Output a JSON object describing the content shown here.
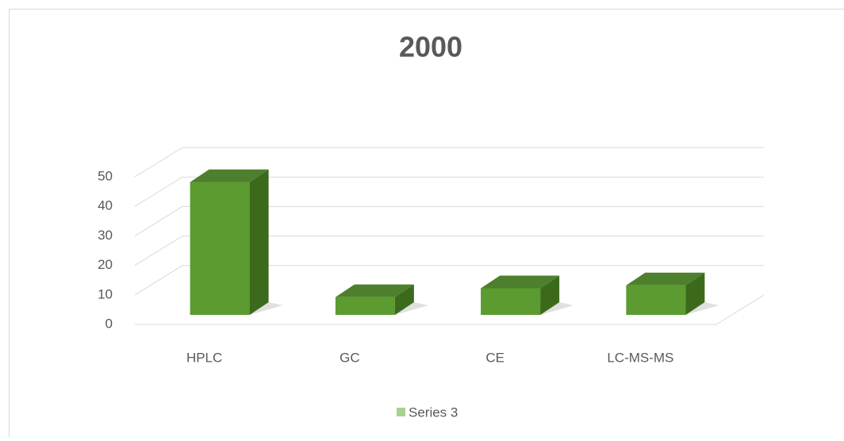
{
  "chart_data": {
    "type": "bar3d",
    "title": "2000",
    "categories": [
      "HPLC",
      "GC",
      "CE",
      "LC-MS-MS"
    ],
    "series": [
      {
        "name": "Series 3",
        "color": "#5b9b2f",
        "values": [
          45,
          6,
          9,
          10
        ]
      }
    ],
    "ylim": [
      0,
      50
    ],
    "yticks": [
      0,
      10,
      20,
      30,
      40,
      50
    ],
    "grid": true,
    "legend": "bottom"
  }
}
